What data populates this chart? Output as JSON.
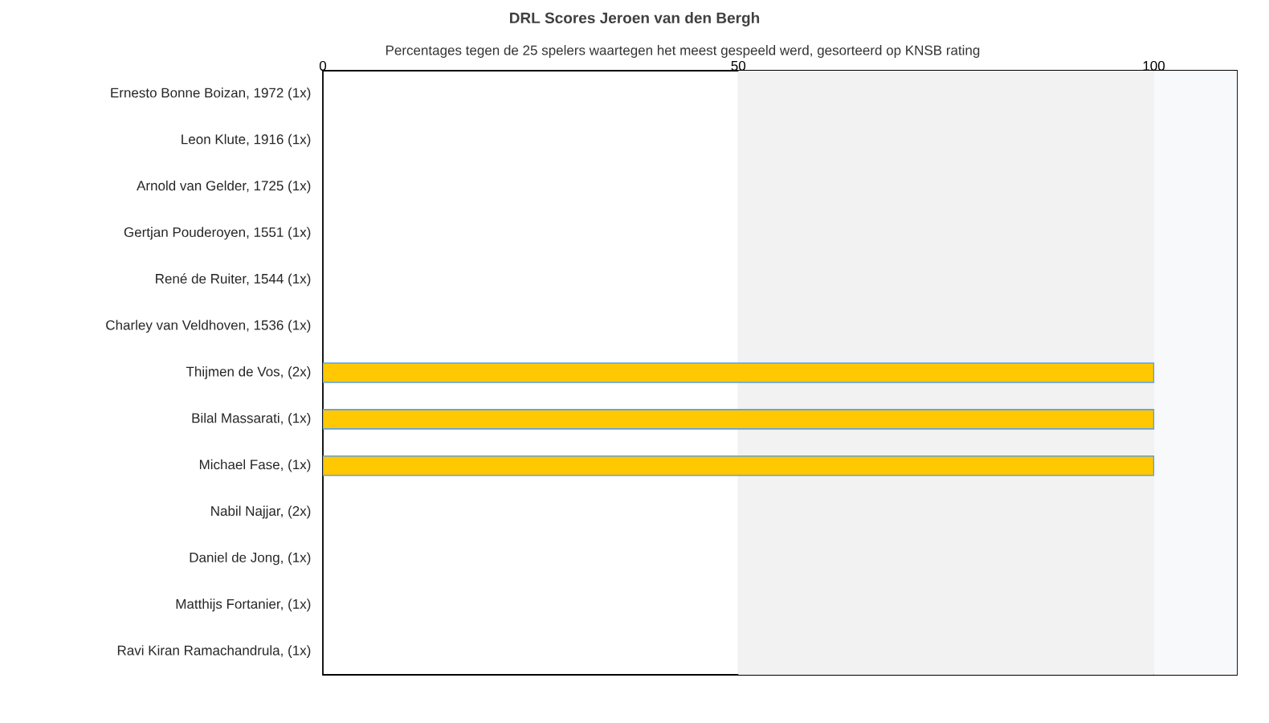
{
  "chart_data": {
    "type": "bar",
    "orientation": "horizontal",
    "title": "DRL Scores Jeroen van den Bergh",
    "subtitle": "Percentages tegen de 25 spelers waartegen het meest gespeeld werd, gesorteerd op KNSB rating",
    "categories": [
      "Ernesto Bonne Boizan, 1972 (1x)",
      "Leon Klute, 1916 (1x)",
      "Arnold van Gelder, 1725 (1x)",
      "Gertjan Pouderoyen, 1551 (1x)",
      "René de Ruiter, 1544 (1x)",
      "Charley van Veldhoven, 1536 (1x)",
      "Thijmen de Vos,  (2x)",
      "Bilal Massarati,  (1x)",
      "Michael Fase,  (1x)",
      "Nabil Najjar,  (2x)",
      "Daniel de Jong,  (1x)",
      "Matthijs Fortanier,  (1x)",
      "Ravi Kiran Ramachandrula,  (1x)"
    ],
    "values": [
      null,
      null,
      null,
      null,
      null,
      null,
      100,
      100,
      100,
      null,
      null,
      null,
      null
    ],
    "color": "#ffc800",
    "xlim": [
      0,
      110
    ],
    "xticks": [
      0,
      50,
      100
    ],
    "grid": "x",
    "bands": [
      {
        "axis": "x",
        "from": 50,
        "to": 100,
        "color": "#f2f2f2"
      },
      {
        "axis": "x",
        "from": 100,
        "to": 110,
        "color": "#f7f9fb"
      }
    ]
  }
}
